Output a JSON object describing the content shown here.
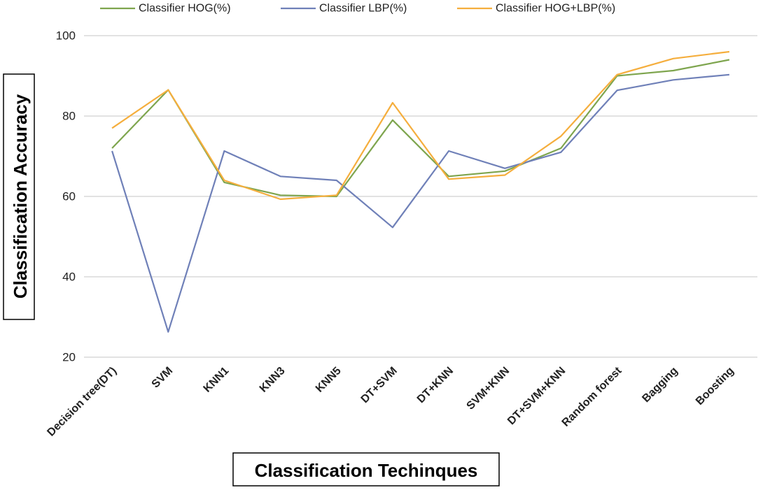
{
  "chart_data": {
    "type": "line",
    "categories": [
      "Decision tree(DT)",
      "SVM",
      "KNN1",
      "KNN3",
      "KNN5",
      "DT+SVM",
      "DT+KNN",
      "SVM+KNN",
      "DT+SVM+KNN",
      "Random forest",
      "Bagging",
      "Boosting"
    ],
    "series": [
      {
        "name": "Classifier HOG(%)",
        "color": "#7ea54e",
        "values": [
          72,
          86.5,
          63.5,
          60.3,
          60,
          79,
          65,
          66.3,
          72,
          90,
          91.3,
          94
        ]
      },
      {
        "name": "Classifier LBP(%)",
        "color": "#6f80b8",
        "values": [
          71.3,
          26.3,
          71.3,
          65,
          64,
          52.3,
          71.3,
          67,
          71,
          86.4,
          89,
          90.3
        ]
      },
      {
        "name": "Classifier HOG+LBP(%)",
        "color": "#f5ae3d",
        "values": [
          77,
          86.5,
          64,
          59.3,
          60.3,
          83.3,
          64.3,
          65.3,
          75,
          90.3,
          94.3,
          96
        ]
      }
    ],
    "xlabel": "Classification Techinques",
    "ylabel": "Classification Accuracy",
    "ylim": [
      20,
      100
    ],
    "yticks": [
      "20",
      "40",
      "60",
      "80",
      "100"
    ],
    "grid": true,
    "legend_position": "top"
  }
}
